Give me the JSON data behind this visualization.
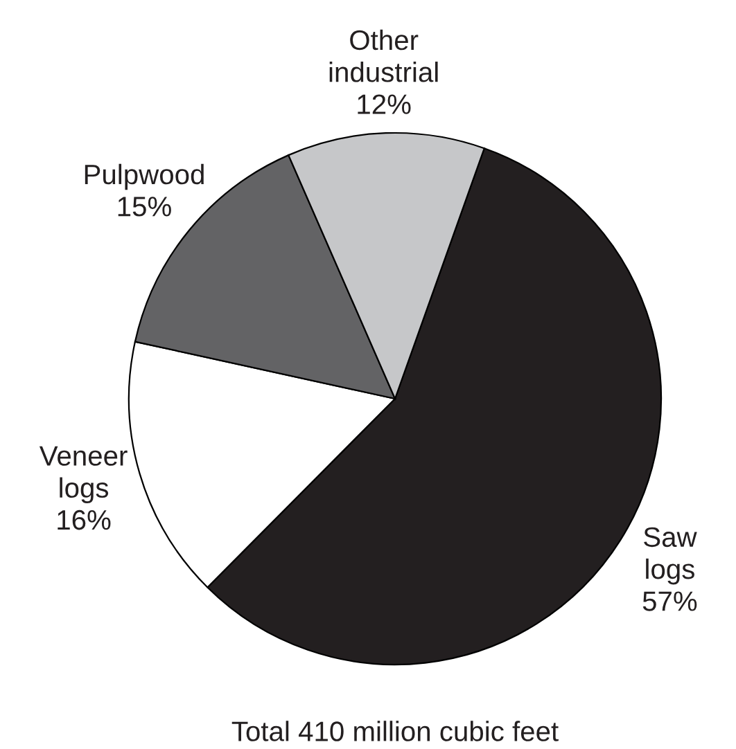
{
  "chart_data": {
    "type": "pie",
    "categories": [
      "Saw logs",
      "Veneer logs",
      "Pulpwood",
      "Other industrial"
    ],
    "values": [
      57,
      16,
      15,
      12
    ],
    "colors": [
      "#231f20",
      "#ffffff",
      "#636365",
      "#c6c7c9"
    ],
    "value_labels": [
      "57%",
      "16%",
      "15%",
      "12%"
    ],
    "annotations": [
      "Total 410 million cubic feet"
    ]
  }
}
